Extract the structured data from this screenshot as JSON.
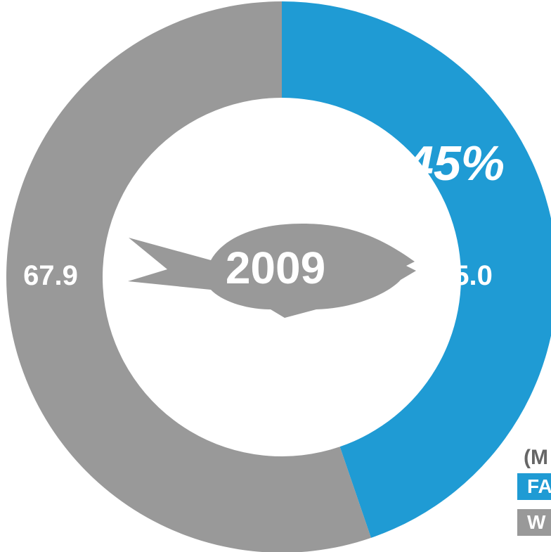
{
  "chart_data": {
    "type": "pie",
    "variant": "donut",
    "center_label": "2009",
    "highlight_percent": "45%",
    "slices": [
      {
        "label": "FA",
        "value": 55.0,
        "value_label": "55.0",
        "color": "#1f9bd4"
      },
      {
        "label": "W",
        "value": 67.9,
        "value_label": "67.9",
        "color": "#999999"
      }
    ],
    "legend": {
      "units_text": "(M",
      "placement": "bottom-right",
      "entries": [
        {
          "label": "FA",
          "color": "#1f9bd4"
        },
        {
          "label": "W",
          "color": "#999999"
        }
      ]
    }
  },
  "icon": {
    "name": "fish-icon",
    "color": "#999999"
  }
}
